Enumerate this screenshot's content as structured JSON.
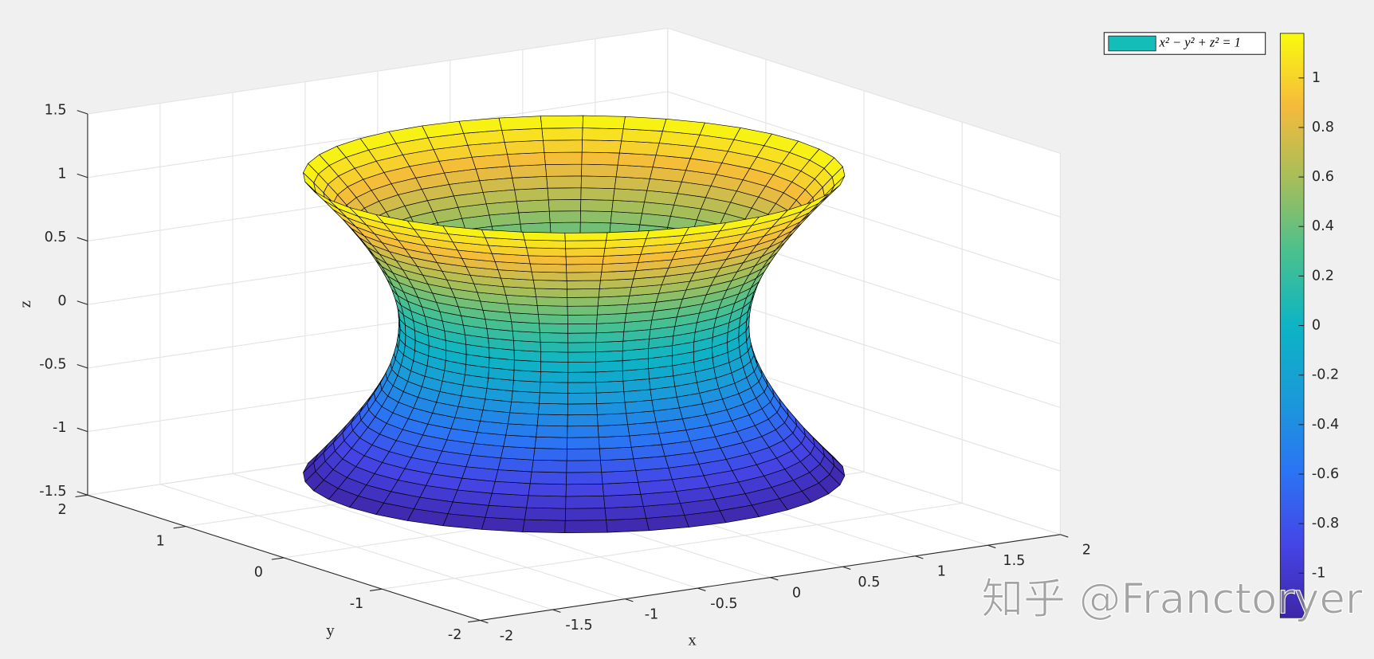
{
  "chart_data": {
    "type": "surface",
    "xlabel": "x",
    "ylabel": "y",
    "zlabel": "z",
    "xlim": [
      -2,
      2
    ],
    "ylim": [
      -2,
      2
    ],
    "zlim": [
      -1.5,
      1.5
    ],
    "xticks": [
      -2,
      -1.5,
      -1,
      -0.5,
      0,
      0.5,
      1,
      1.5,
      2
    ],
    "yticks": [
      -2,
      -1,
      0,
      1,
      2
    ],
    "zticks": [
      -1.5,
      -1,
      -0.5,
      0,
      0.5,
      1,
      1.5
    ],
    "grid": true,
    "legend": {
      "label": "x² − y² + z² = 1",
      "color": "#14bdb8",
      "location": "northeast"
    },
    "surface": {
      "z": [
        -1.18,
        -1.101,
        -1.023,
        -0.944,
        -0.865,
        -0.787,
        -0.708,
        -0.629,
        -0.551,
        -0.472,
        -0.393,
        -0.315,
        -0.236,
        -0.157,
        -0.079,
        0,
        0.079,
        0.157,
        0.236,
        0.315,
        0.393,
        0.472,
        0.551,
        0.629,
        0.708,
        0.787,
        0.865,
        0.944,
        1.023,
        1.101,
        1.18
      ],
      "r": [
        1.547,
        1.487,
        1.431,
        1.375,
        1.322,
        1.273,
        1.225,
        1.181,
        1.142,
        1.106,
        1.075,
        1.048,
        1.028,
        1.012,
        1.003,
        1,
        1.003,
        1.012,
        1.028,
        1.048,
        1.075,
        1.106,
        1.142,
        1.181,
        1.225,
        1.273,
        1.322,
        1.375,
        1.431,
        1.487,
        1.547
      ],
      "segments": 40,
      "edge_color": "#000000"
    },
    "colorbar": {
      "clim": [
        -1.18,
        1.18
      ],
      "ticks": [
        -1,
        -0.8,
        -0.6,
        -0.4,
        -0.2,
        0,
        0.2,
        0.4,
        0.6,
        0.8,
        1
      ],
      "colormap": [
        "#3e26a8",
        "#4545e6",
        "#2b74f4",
        "#1a9ad8",
        "#0db4c4",
        "#4ac08e",
        "#a5be5a",
        "#f5ba3c",
        "#f9fb0e"
      ]
    }
  },
  "watermark": "知乎 @Franctoryer"
}
